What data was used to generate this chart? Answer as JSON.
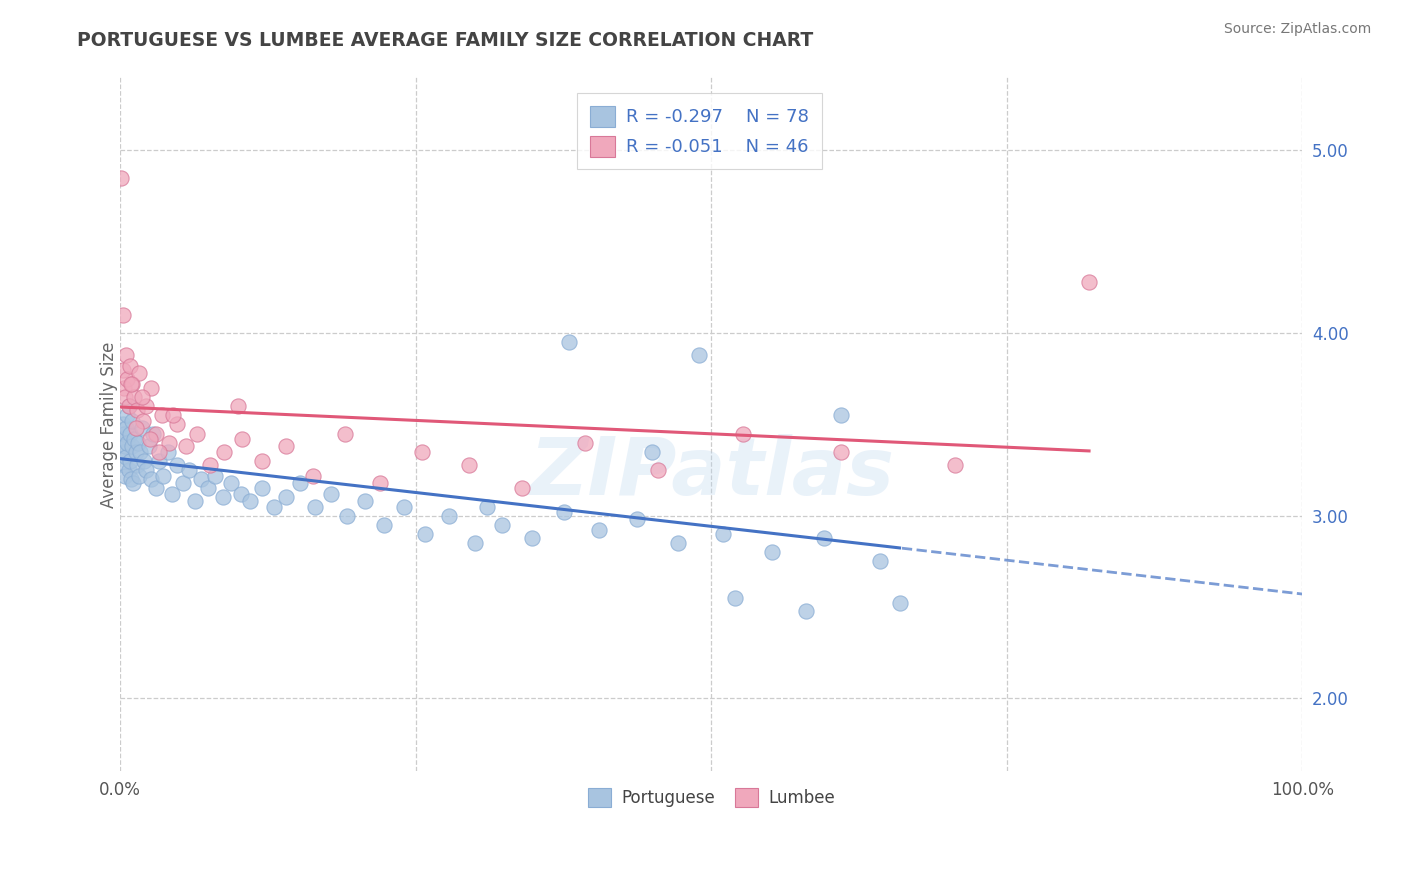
{
  "title": "PORTUGUESE VS LUMBEE AVERAGE FAMILY SIZE CORRELATION CHART",
  "source": "Source: ZipAtlas.com",
  "ylabel": "Average Family Size",
  "xlim": [
    0.0,
    1.0
  ],
  "ylim": [
    1.6,
    5.4
  ],
  "yticks": [
    2.0,
    3.0,
    4.0,
    5.0
  ],
  "xticks": [
    0.0,
    0.25,
    0.5,
    0.75,
    1.0
  ],
  "xtick_labels": [
    "0.0%",
    "",
    "",
    "",
    "100.0%"
  ],
  "background_color": "#ffffff",
  "grid_color": "#cccccc",
  "title_color": "#444444",
  "portuguese_color": "#a8c4e0",
  "lumbee_color": "#f0a8bc",
  "portuguese_line_color": "#4472c4",
  "lumbee_line_color": "#e05878",
  "R_portuguese": -0.297,
  "N_portuguese": 78,
  "R_lumbee": -0.051,
  "N_lumbee": 46,
  "watermark": "ZIPatlas",
  "portuguese_scatter_x": [
    0.001,
    0.002,
    0.002,
    0.003,
    0.003,
    0.004,
    0.004,
    0.005,
    0.005,
    0.006,
    0.006,
    0.007,
    0.007,
    0.008,
    0.008,
    0.009,
    0.01,
    0.01,
    0.011,
    0.012,
    0.013,
    0.014,
    0.015,
    0.016,
    0.017,
    0.018,
    0.02,
    0.022,
    0.024,
    0.026,
    0.028,
    0.03,
    0.033,
    0.036,
    0.04,
    0.044,
    0.048,
    0.053,
    0.058,
    0.063,
    0.068,
    0.074,
    0.08,
    0.087,
    0.094,
    0.102,
    0.11,
    0.12,
    0.13,
    0.14,
    0.152,
    0.165,
    0.178,
    0.192,
    0.207,
    0.223,
    0.24,
    0.258,
    0.278,
    0.3,
    0.323,
    0.348,
    0.375,
    0.405,
    0.437,
    0.472,
    0.51,
    0.551,
    0.595,
    0.643,
    0.61,
    0.66,
    0.58,
    0.52,
    0.49,
    0.45,
    0.38,
    0.31
  ],
  "portuguese_scatter_y": [
    3.42,
    3.35,
    3.5,
    3.28,
    3.45,
    3.38,
    3.22,
    3.48,
    3.32,
    3.4,
    3.55,
    3.25,
    3.6,
    3.3,
    3.45,
    3.2,
    3.38,
    3.52,
    3.18,
    3.42,
    3.35,
    3.28,
    3.4,
    3.22,
    3.35,
    3.48,
    3.3,
    3.25,
    3.38,
    3.2,
    3.45,
    3.15,
    3.3,
    3.22,
    3.35,
    3.12,
    3.28,
    3.18,
    3.25,
    3.08,
    3.2,
    3.15,
    3.22,
    3.1,
    3.18,
    3.12,
    3.08,
    3.15,
    3.05,
    3.1,
    3.18,
    3.05,
    3.12,
    3.0,
    3.08,
    2.95,
    3.05,
    2.9,
    3.0,
    2.85,
    2.95,
    2.88,
    3.02,
    2.92,
    2.98,
    2.85,
    2.9,
    2.8,
    2.88,
    2.75,
    3.55,
    2.52,
    2.48,
    2.55,
    3.88,
    3.35,
    3.95,
    3.05
  ],
  "lumbee_scatter_x": [
    0.001,
    0.002,
    0.002,
    0.003,
    0.004,
    0.005,
    0.006,
    0.007,
    0.008,
    0.01,
    0.012,
    0.014,
    0.016,
    0.019,
    0.022,
    0.026,
    0.03,
    0.035,
    0.041,
    0.048,
    0.056,
    0.065,
    0.076,
    0.088,
    0.103,
    0.12,
    0.14,
    0.163,
    0.19,
    0.22,
    0.255,
    0.295,
    0.34,
    0.393,
    0.455,
    0.527,
    0.61,
    0.706,
    0.82,
    0.1,
    0.045,
    0.033,
    0.025,
    0.018,
    0.013,
    0.009
  ],
  "lumbee_scatter_y": [
    4.85,
    3.8,
    4.1,
    3.7,
    3.65,
    3.88,
    3.75,
    3.6,
    3.82,
    3.72,
    3.65,
    3.58,
    3.78,
    3.52,
    3.6,
    3.7,
    3.45,
    3.55,
    3.4,
    3.5,
    3.38,
    3.45,
    3.28,
    3.35,
    3.42,
    3.3,
    3.38,
    3.22,
    3.45,
    3.18,
    3.35,
    3.28,
    3.15,
    3.4,
    3.25,
    3.45,
    3.35,
    3.28,
    4.28,
    3.6,
    3.55,
    3.35,
    3.42,
    3.65,
    3.48,
    3.72
  ]
}
